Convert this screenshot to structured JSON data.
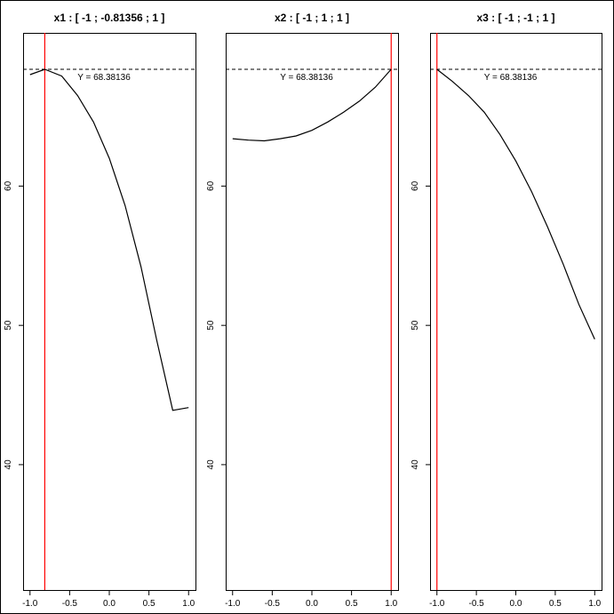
{
  "chart_data": [
    {
      "type": "line",
      "title": "x1 : [ -1 ;  -0.81356 ;  1 ]",
      "xlim": [
        -1,
        1
      ],
      "ylim": [
        31,
        71
      ],
      "x_ticks": [
        "-1.0",
        "-0.5",
        "0.0",
        "0.5",
        "1.0"
      ],
      "y_ticks": [
        "40",
        "50",
        "60"
      ],
      "reference_y": 68.38136,
      "reference_x": -0.81356,
      "annotation": "Y = 68.38136",
      "series": [
        {
          "x": [
            -1.0,
            -0.81356,
            -0.6,
            -0.4,
            -0.2,
            0.0,
            0.2,
            0.4,
            0.6,
            0.8,
            1.0
          ],
          "y": [
            68.0,
            68.38136,
            67.9,
            66.5,
            64.6,
            62.0,
            58.6,
            54.2,
            48.9,
            43.9,
            44.1
          ]
        }
      ],
      "colors": {
        "line": "#000000",
        "reference_x": "#ff0000"
      }
    },
    {
      "type": "line",
      "title": "x2 : [ -1 ;  1 ;  1 ]",
      "xlim": [
        -1,
        1
      ],
      "ylim": [
        31,
        71
      ],
      "x_ticks": [
        "-1.0",
        "-0.5",
        "0.0",
        "0.5",
        "1.0"
      ],
      "y_ticks": [
        "40",
        "50",
        "60"
      ],
      "reference_y": 68.38136,
      "reference_x": 1.0,
      "annotation": "Y = 68.38136",
      "series": [
        {
          "x": [
            -1.0,
            -0.8,
            -0.6,
            -0.4,
            -0.2,
            0.0,
            0.2,
            0.4,
            0.6,
            0.8,
            1.0
          ],
          "y": [
            63.4,
            63.3,
            63.25,
            63.4,
            63.6,
            64.0,
            64.6,
            65.3,
            66.1,
            67.1,
            68.38136
          ]
        }
      ],
      "colors": {
        "line": "#000000",
        "reference_x": "#ff0000"
      }
    },
    {
      "type": "line",
      "title": "x3 : [ -1 ;  -1 ;  1 ]",
      "xlim": [
        -1,
        1
      ],
      "ylim": [
        31,
        71
      ],
      "x_ticks": [
        "-1.0",
        "-0.5",
        "0.0",
        "0.5",
        "1.0"
      ],
      "y_ticks": [
        "40",
        "50",
        "60"
      ],
      "reference_y": 68.38136,
      "reference_x": -1.0,
      "annotation": "Y = 68.38136",
      "series": [
        {
          "x": [
            -1.0,
            -0.8,
            -0.6,
            -0.4,
            -0.2,
            0.0,
            0.2,
            0.4,
            0.6,
            0.8,
            1.0
          ],
          "y": [
            68.38136,
            67.5,
            66.5,
            65.3,
            63.7,
            61.8,
            59.6,
            57.1,
            54.4,
            51.5,
            49.0
          ]
        }
      ],
      "colors": {
        "line": "#000000",
        "reference_x": "#ff0000"
      }
    }
  ]
}
